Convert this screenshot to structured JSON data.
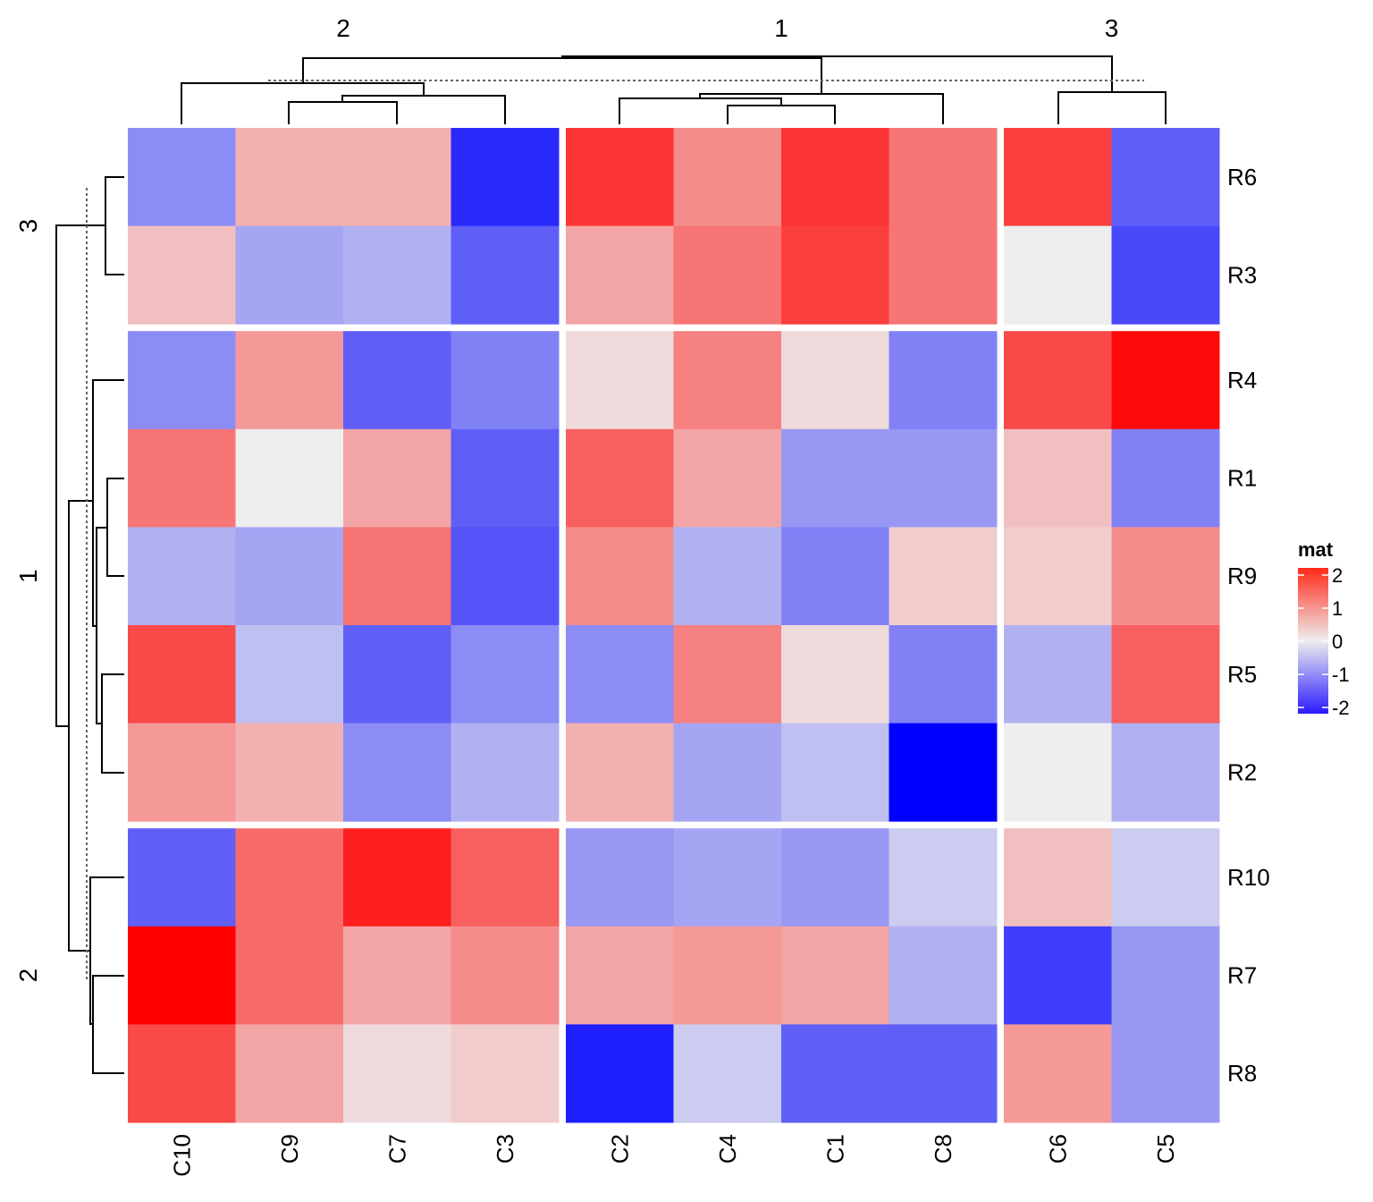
{
  "chart_data": {
    "type": "heatmap",
    "title": "",
    "legend": {
      "title": "mat",
      "ticks": [
        2,
        1,
        0,
        -1,
        -2
      ],
      "placement": "right",
      "colors": {
        "low": "#0000FF",
        "mid": "#EEEEEE",
        "high": "#FF0000"
      },
      "range": [
        -2,
        2
      ]
    },
    "column_groups": [
      {
        "label": "2",
        "columns": [
          "C10",
          "C9",
          "C7",
          "C3"
        ]
      },
      {
        "label": "1",
        "columns": [
          "C2",
          "C4",
          "C1",
          "C8"
        ]
      },
      {
        "label": "3",
        "columns": [
          "C6",
          "C5"
        ]
      }
    ],
    "row_groups": [
      {
        "label": "3",
        "rows": [
          "R6",
          "R3"
        ]
      },
      {
        "label": "1",
        "rows": [
          "R4",
          "R1",
          "R9",
          "R5",
          "R2"
        ]
      },
      {
        "label": "2",
        "rows": [
          "R10",
          "R7",
          "R8"
        ]
      }
    ],
    "columns": [
      "C10",
      "C9",
      "C7",
      "C3",
      "C2",
      "C4",
      "C1",
      "C8",
      "C6",
      "C5"
    ],
    "rows": [
      "R6",
      "R3",
      "R4",
      "R1",
      "R9",
      "R5",
      "R2",
      "R10",
      "R7",
      "R8"
    ],
    "values": [
      [
        -0.7,
        0.4,
        0.4,
        -1.6,
        1.5,
        0.7,
        1.5,
        0.9,
        1.4,
        -1.1
      ],
      [
        0.3,
        -0.5,
        -0.4,
        -1.1,
        0.5,
        0.9,
        1.4,
        0.9,
        0.0,
        -1.3
      ],
      [
        -0.7,
        0.6,
        -1.1,
        -0.8,
        0.1,
        0.8,
        0.1,
        -0.8,
        1.3,
        1.9
      ],
      [
        0.9,
        0.0,
        0.5,
        -1.1,
        1.1,
        0.5,
        -0.6,
        -0.6,
        0.3,
        -0.8
      ],
      [
        -0.4,
        -0.5,
        0.9,
        -1.2,
        0.7,
        -0.4,
        -0.8,
        0.2,
        0.2,
        0.7
      ],
      [
        1.3,
        -0.3,
        -1.1,
        -0.7,
        -0.7,
        0.8,
        0.1,
        -0.8,
        -0.4,
        1.1
      ],
      [
        0.6,
        0.4,
        -0.7,
        -0.4,
        0.4,
        -0.5,
        -0.3,
        -2.0,
        0.0,
        -0.4
      ],
      [
        -1.1,
        1.0,
        1.7,
        1.1,
        -0.6,
        -0.5,
        -0.6,
        -0.2,
        0.3,
        -0.2
      ],
      [
        2.0,
        1.0,
        0.5,
        0.7,
        0.5,
        0.6,
        0.5,
        -0.4,
        -1.4,
        -0.6
      ],
      [
        1.3,
        0.5,
        0.1,
        0.2,
        -1.7,
        -0.2,
        -1.1,
        -1.1,
        0.6,
        -0.6
      ]
    ]
  }
}
